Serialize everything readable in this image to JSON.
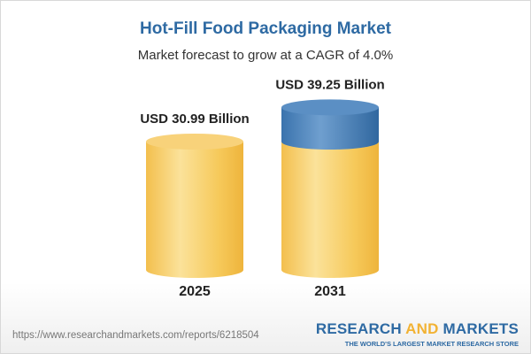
{
  "title": "Hot-Fill Food Packaging Market",
  "subtitle": "Market forecast to grow at a CAGR of 4.0%",
  "footer": {
    "url": "https://www.researchandmarkets.com/reports/6218504",
    "logo_part1": "RESEARCH ",
    "logo_part2": "AND",
    "logo_part3": " MARKETS",
    "tagline": "THE WORLD'S LARGEST MARKET RESEARCH STORE"
  },
  "colors": {
    "bar": "#f5c04a",
    "growth": "#3f7ab5",
    "title": "#2e6aa3"
  },
  "chart_data": {
    "type": "bar",
    "title": "Hot-Fill Food Packaging Market",
    "subtitle": "Market forecast to grow at a CAGR of 4.0%",
    "categories": [
      "2025",
      "2031"
    ],
    "values": [
      30.99,
      39.25
    ],
    "data_labels": [
      "USD 30.99 Billion",
      "USD 39.25 Billion"
    ],
    "unit": "USD Billion",
    "cagr": "4.0%"
  }
}
